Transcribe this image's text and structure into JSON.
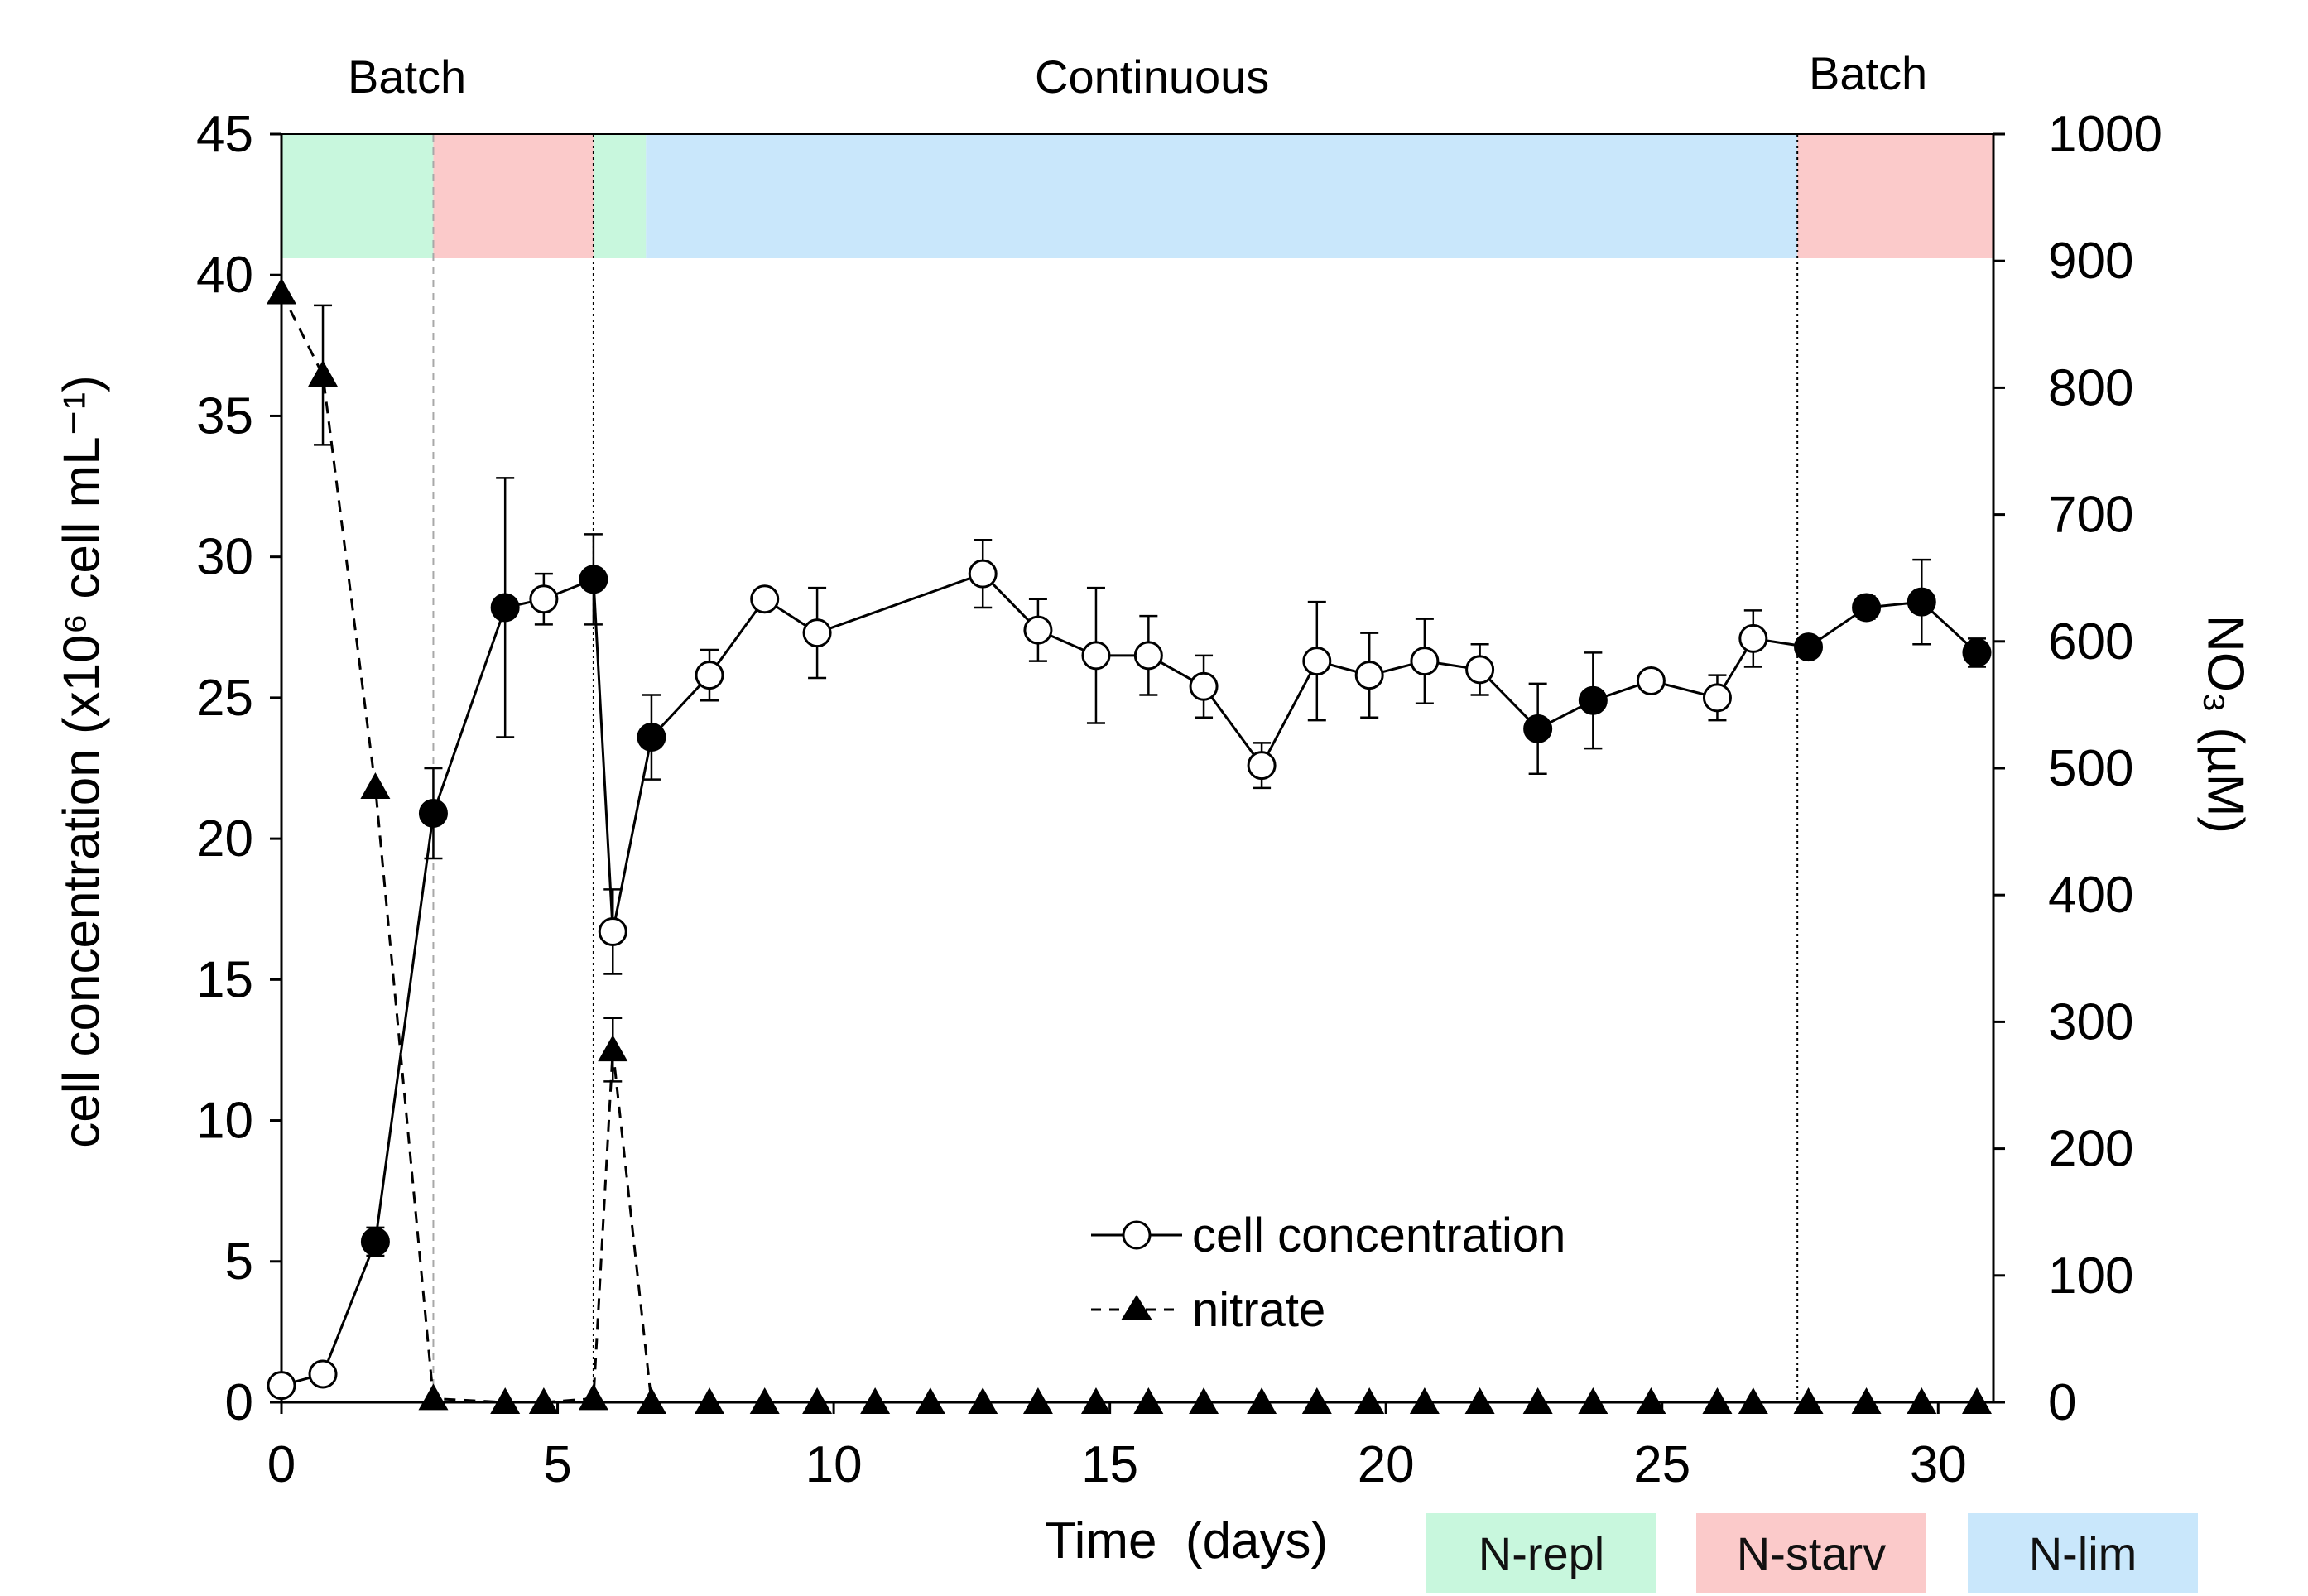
{
  "chart_data": {
    "type": "line",
    "phases": [
      "Batch",
      "Continuous",
      "Batch"
    ],
    "regime_legend": [
      {
        "label": "N-repl",
        "color": "#c8f7dd"
      },
      {
        "label": "N-starv",
        "color": "#fbcaca"
      },
      {
        "label": "N-lim",
        "color": "#c9e7fb"
      }
    ],
    "regime_bands": [
      {
        "regime": "N-repl",
        "x_start": 0,
        "x_end": 2.75
      },
      {
        "regime": "N-starv",
        "x_start": 2.75,
        "x_end": 5.65
      },
      {
        "regime": "N-repl",
        "x_start": 5.65,
        "x_end": 6.6
      },
      {
        "regime": "N-lim",
        "x_start": 6.6,
        "x_end": 27.45
      },
      {
        "regime": "N-starv",
        "x_start": 27.45,
        "x_end": 31
      }
    ],
    "phase_dividers": [
      {
        "x": 2.75,
        "style": "gray-dashed"
      },
      {
        "x": 5.65,
        "style": "black-dotted"
      },
      {
        "x": 27.45,
        "style": "black-dotted"
      }
    ],
    "xlabel": "Time  (days)",
    "ylabel_left": "cell concentration (x10⁶ cell mL⁻¹)",
    "ylabel_right": "NO₃ (µM)",
    "xlim": [
      0,
      31
    ],
    "ylim_left": [
      0,
      45
    ],
    "ylim_right": [
      0,
      1000
    ],
    "x_ticks": [
      "0",
      "5",
      "10",
      "15",
      "20",
      "25",
      "30"
    ],
    "y_left_ticks": [
      "0",
      "5",
      "10",
      "15",
      "20",
      "25",
      "30",
      "35",
      "40",
      "45"
    ],
    "y_right_ticks": [
      "0",
      "100",
      "200",
      "300",
      "400",
      "500",
      "600",
      "700",
      "800",
      "900",
      "1000"
    ],
    "series": [
      {
        "name": "cell concentration",
        "axis": "left",
        "line_style": "solid",
        "marker": "circle",
        "points": [
          {
            "x": 0,
            "y": 0.6,
            "err": 0,
            "filled": false
          },
          {
            "x": 0.75,
            "y": 1.0,
            "err": 0,
            "filled": false
          },
          {
            "x": 1.7,
            "y": 5.7,
            "err": 0.5,
            "filled": true
          },
          {
            "x": 2.75,
            "y": 20.9,
            "err": 1.6,
            "filled": true
          },
          {
            "x": 4.05,
            "y": 28.2,
            "err": 4.6,
            "filled": true
          },
          {
            "x": 4.75,
            "y": 28.5,
            "err": 0.9,
            "filled": false
          },
          {
            "x": 5.65,
            "y": 29.2,
            "err": 1.6,
            "filled": true
          },
          {
            "x": 6.0,
            "y": 16.7,
            "err": 1.5,
            "filled": false
          },
          {
            "x": 6.7,
            "y": 23.6,
            "err": 1.5,
            "filled": true
          },
          {
            "x": 7.75,
            "y": 25.8,
            "err": 0.9,
            "filled": false
          },
          {
            "x": 8.75,
            "y": 28.5,
            "err": 0,
            "filled": false
          },
          {
            "x": 9.7,
            "y": 27.3,
            "err": 1.6,
            "filled": false
          },
          {
            "x": 12.7,
            "y": 29.4,
            "err": 1.2,
            "filled": false
          },
          {
            "x": 13.7,
            "y": 27.4,
            "err": 1.1,
            "filled": false
          },
          {
            "x": 14.75,
            "y": 26.5,
            "err": 2.4,
            "filled": false
          },
          {
            "x": 15.7,
            "y": 26.5,
            "err": 1.4,
            "filled": false
          },
          {
            "x": 16.7,
            "y": 25.4,
            "err": 1.1,
            "filled": false
          },
          {
            "x": 17.75,
            "y": 22.6,
            "err": 0.8,
            "filled": false
          },
          {
            "x": 18.75,
            "y": 26.3,
            "err": 2.1,
            "filled": false
          },
          {
            "x": 19.7,
            "y": 25.8,
            "err": 1.5,
            "filled": false
          },
          {
            "x": 20.7,
            "y": 26.3,
            "err": 1.5,
            "filled": false
          },
          {
            "x": 21.7,
            "y": 26.0,
            "err": 0.9,
            "filled": false
          },
          {
            "x": 22.75,
            "y": 23.9,
            "err": 1.6,
            "filled": true
          },
          {
            "x": 23.75,
            "y": 24.9,
            "err": 1.7,
            "filled": true
          },
          {
            "x": 24.8,
            "y": 25.6,
            "err": 0,
            "filled": false
          },
          {
            "x": 26.0,
            "y": 25.0,
            "err": 0.8,
            "filled": false
          },
          {
            "x": 26.65,
            "y": 27.1,
            "err": 1.0,
            "filled": false
          },
          {
            "x": 27.65,
            "y": 26.8,
            "err": 0,
            "filled": true
          },
          {
            "x": 28.7,
            "y": 28.2,
            "err": 0.4,
            "filled": true
          },
          {
            "x": 29.7,
            "y": 28.4,
            "err": 1.5,
            "filled": true
          },
          {
            "x": 30.7,
            "y": 26.6,
            "err": 0.5,
            "filled": true
          }
        ]
      },
      {
        "name": "nitrate",
        "axis": "right",
        "line_style": "dashed",
        "marker": "triangle",
        "points": [
          {
            "x": 0,
            "y": 875,
            "err": 0
          },
          {
            "x": 0.75,
            "y": 810,
            "err": 55
          },
          {
            "x": 1.7,
            "y": 485,
            "err": 0
          },
          {
            "x": 2.75,
            "y": 3,
            "err": 0
          },
          {
            "x": 4.05,
            "y": 0,
            "err": 0
          },
          {
            "x": 4.75,
            "y": 0,
            "err": 0
          },
          {
            "x": 5.65,
            "y": 3,
            "err": 0
          },
          {
            "x": 6.0,
            "y": 278,
            "err": 25
          },
          {
            "x": 6.7,
            "y": 0,
            "err": 0
          },
          {
            "x": 7.75,
            "y": 0,
            "err": 0
          },
          {
            "x": 8.75,
            "y": 0,
            "err": 0
          },
          {
            "x": 9.7,
            "y": 0,
            "err": 0
          },
          {
            "x": 10.75,
            "y": 0,
            "err": 0
          },
          {
            "x": 11.75,
            "y": 0,
            "err": 0
          },
          {
            "x": 12.7,
            "y": 0,
            "err": 0
          },
          {
            "x": 13.7,
            "y": 0,
            "err": 0
          },
          {
            "x": 14.75,
            "y": 0,
            "err": 0
          },
          {
            "x": 15.7,
            "y": 0,
            "err": 0
          },
          {
            "x": 16.7,
            "y": 0,
            "err": 0
          },
          {
            "x": 17.75,
            "y": 0,
            "err": 0
          },
          {
            "x": 18.75,
            "y": 0,
            "err": 0
          },
          {
            "x": 19.7,
            "y": 0,
            "err": 0
          },
          {
            "x": 20.7,
            "y": 0,
            "err": 0
          },
          {
            "x": 21.7,
            "y": 0,
            "err": 0
          },
          {
            "x": 22.75,
            "y": 0,
            "err": 0
          },
          {
            "x": 23.75,
            "y": 0,
            "err": 0
          },
          {
            "x": 24.8,
            "y": 0,
            "err": 0
          },
          {
            "x": 26.0,
            "y": 0,
            "err": 0
          },
          {
            "x": 26.65,
            "y": 0,
            "err": 0
          },
          {
            "x": 27.65,
            "y": 0,
            "err": 0
          },
          {
            "x": 28.7,
            "y": 0,
            "err": 0
          },
          {
            "x": 29.7,
            "y": 0,
            "err": 0
          },
          {
            "x": 30.7,
            "y": 0,
            "err": 0
          }
        ]
      }
    ],
    "legend": [
      "cell concentration",
      "nitrate"
    ],
    "legend_position": "bottom-center"
  }
}
